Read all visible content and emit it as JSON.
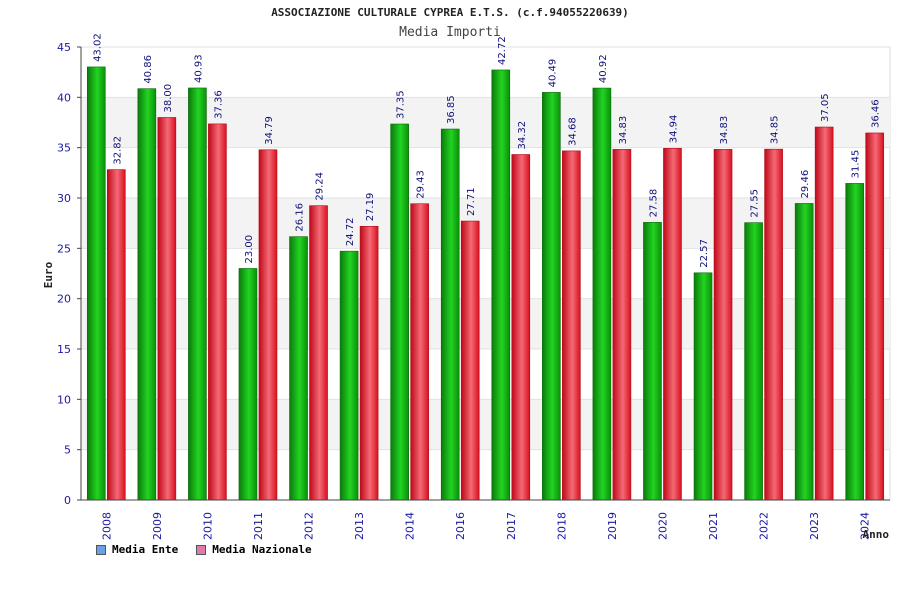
{
  "header": {
    "title": "ASSOCIAZIONE CULTURALE CYPREA E.T.S. (c.f.94055220639)",
    "subtitle": "Media Importi"
  },
  "legend": {
    "items": [
      {
        "label": "Media Ente",
        "color": "#6aa0e8"
      },
      {
        "label": "Media Nazionale",
        "color": "#e07aa8"
      }
    ]
  },
  "chart_data": {
    "type": "bar",
    "title": "Media Importi",
    "xlabel": "Anno",
    "ylabel": "Euro",
    "ylim": [
      0,
      45
    ],
    "yticks": [
      0,
      5,
      10,
      15,
      20,
      25,
      30,
      35,
      40,
      45
    ],
    "grid": true,
    "legend_position": "bottom-left",
    "categories": [
      "2008",
      "2009",
      "2010",
      "2011",
      "2012",
      "2013",
      "2014",
      "2016",
      "2017",
      "2018",
      "2019",
      "2020",
      "2021",
      "2022",
      "2023",
      "2024"
    ],
    "series": [
      {
        "name": "Media Ente",
        "color": "#1db51d",
        "values": [
          43.02,
          40.86,
          40.93,
          23.0,
          26.16,
          24.72,
          37.35,
          36.85,
          42.72,
          40.49,
          40.92,
          27.58,
          22.57,
          27.55,
          29.46,
          31.45
        ]
      },
      {
        "name": "Media Nazionale",
        "color": "#e8283a",
        "values": [
          32.82,
          38.0,
          37.36,
          34.79,
          29.24,
          27.19,
          29.43,
          27.71,
          34.32,
          34.68,
          34.83,
          34.94,
          34.83,
          34.85,
          37.05,
          36.46
        ]
      }
    ],
    "value_labels": [
      [
        "43.02",
        "40.86",
        "40.93",
        "23.00",
        "26.16",
        "24.72",
        "37.35",
        "36.85",
        "42.72",
        "40.49",
        "40.92",
        "27.58",
        "22.57",
        "27.55",
        "29.46",
        "31.45"
      ],
      [
        "32.82",
        "38.00",
        "37.36",
        "34.79",
        "29.24",
        "27.19",
        "29.43",
        "27.71",
        "34.32",
        "34.68",
        "34.83",
        "34.94",
        "34.83",
        "34.85",
        "37.05",
        "36.46"
      ]
    ]
  }
}
